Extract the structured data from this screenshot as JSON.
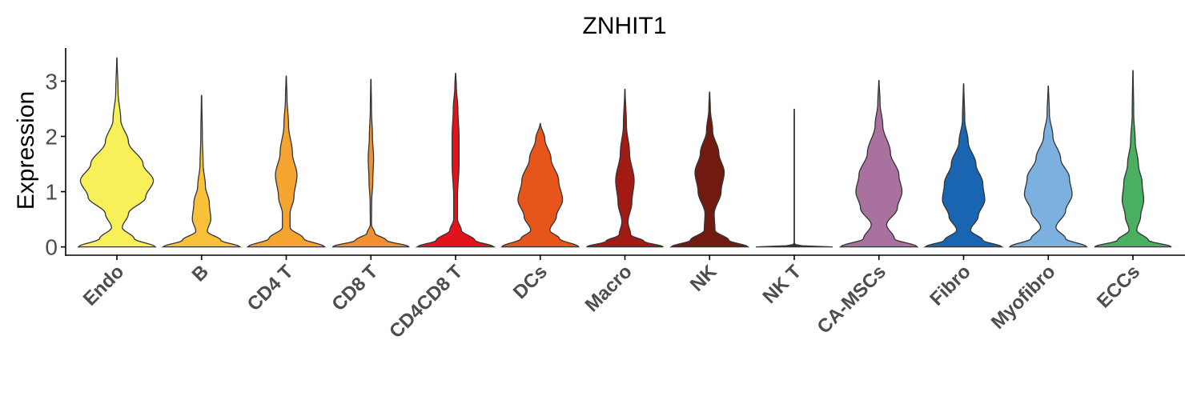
{
  "chart_data": {
    "type": "violin",
    "title": "ZNHIT1",
    "ylabel": "Expression",
    "xlabel": "",
    "ylim": [
      -0.15,
      3.6
    ],
    "yticks": [
      0,
      1,
      2,
      3
    ],
    "categories": [
      "Endo",
      "B",
      "CD4 T",
      "CD8 T",
      "CD4CD8 T",
      "DCs",
      "Macro",
      "NK",
      "NK T",
      "CA-MSCs",
      "Fibro",
      "Myofibro",
      "ECCs"
    ],
    "colors": [
      "#F7F058",
      "#F9C139",
      "#F5A431",
      "#F09030",
      "#E2131A",
      "#E6561B",
      "#A11A14",
      "#701A10",
      "#6B1B12",
      "#A8719E",
      "#1A65B1",
      "#7BB0DF",
      "#4AAF60"
    ],
    "distributions": [
      {
        "max": 3.43,
        "profile": [
          [
            0,
            1.0
          ],
          [
            0.15,
            0.45
          ],
          [
            0.35,
            0.14
          ],
          [
            0.6,
            0.3
          ],
          [
            0.9,
            0.75
          ],
          [
            1.2,
            0.95
          ],
          [
            1.5,
            0.68
          ],
          [
            1.9,
            0.3
          ],
          [
            2.3,
            0.1
          ],
          [
            2.8,
            0.03
          ],
          [
            3.43,
            0.005
          ]
        ]
      },
      {
        "max": 2.75,
        "profile": [
          [
            0,
            1.0
          ],
          [
            0.12,
            0.5
          ],
          [
            0.28,
            0.15
          ],
          [
            0.5,
            0.24
          ],
          [
            0.8,
            0.2
          ],
          [
            1.1,
            0.1
          ],
          [
            1.5,
            0.04
          ],
          [
            2.0,
            0.02
          ],
          [
            2.75,
            0.005
          ]
        ]
      },
      {
        "max": 3.1,
        "profile": [
          [
            0,
            1.0
          ],
          [
            0.15,
            0.45
          ],
          [
            0.35,
            0.1
          ],
          [
            0.6,
            0.1
          ],
          [
            0.9,
            0.2
          ],
          [
            1.3,
            0.28
          ],
          [
            1.7,
            0.16
          ],
          [
            2.2,
            0.06
          ],
          [
            2.7,
            0.02
          ],
          [
            3.1,
            0.005
          ]
        ]
      },
      {
        "max": 3.04,
        "profile": [
          [
            0,
            1.0
          ],
          [
            0.12,
            0.4
          ],
          [
            0.25,
            0.1
          ],
          [
            0.4,
            0.015
          ],
          [
            0.8,
            0.02
          ],
          [
            1.2,
            0.05
          ],
          [
            1.6,
            0.07
          ],
          [
            2.0,
            0.04
          ],
          [
            2.5,
            0.015
          ],
          [
            3.04,
            0.005
          ]
        ]
      },
      {
        "max": 3.15,
        "profile": [
          [
            0,
            1.0
          ],
          [
            0.12,
            0.5
          ],
          [
            0.3,
            0.15
          ],
          [
            0.5,
            0.05
          ],
          [
            0.9,
            0.05
          ],
          [
            1.5,
            0.09
          ],
          [
            2.0,
            0.09
          ],
          [
            2.5,
            0.06
          ],
          [
            2.9,
            0.02
          ],
          [
            3.15,
            0.005
          ]
        ]
      },
      {
        "max": 2.24,
        "profile": [
          [
            0,
            1.0
          ],
          [
            0.15,
            0.5
          ],
          [
            0.3,
            0.25
          ],
          [
            0.55,
            0.42
          ],
          [
            0.85,
            0.58
          ],
          [
            1.2,
            0.48
          ],
          [
            1.6,
            0.28
          ],
          [
            1.95,
            0.12
          ],
          [
            2.24,
            0.005
          ]
        ]
      },
      {
        "max": 2.86,
        "profile": [
          [
            0,
            1.0
          ],
          [
            0.1,
            0.5
          ],
          [
            0.22,
            0.15
          ],
          [
            0.45,
            0.08
          ],
          [
            0.8,
            0.18
          ],
          [
            1.2,
            0.24
          ],
          [
            1.7,
            0.12
          ],
          [
            2.2,
            0.04
          ],
          [
            2.86,
            0.005
          ]
        ]
      },
      {
        "max": 2.81,
        "profile": [
          [
            0,
            1.0
          ],
          [
            0.12,
            0.5
          ],
          [
            0.3,
            0.14
          ],
          [
            0.6,
            0.12
          ],
          [
            1.0,
            0.3
          ],
          [
            1.35,
            0.38
          ],
          [
            1.7,
            0.24
          ],
          [
            2.1,
            0.08
          ],
          [
            2.5,
            0.02
          ],
          [
            2.81,
            0.005
          ]
        ]
      },
      {
        "max": 2.5,
        "profile": [
          [
            0,
            1.0
          ],
          [
            0.02,
            0.2
          ],
          [
            0.05,
            0.005
          ],
          [
            2.5,
            0.005
          ]
        ]
      },
      {
        "max": 3.02,
        "profile": [
          [
            0,
            1.0
          ],
          [
            0.15,
            0.4
          ],
          [
            0.4,
            0.2
          ],
          [
            0.7,
            0.48
          ],
          [
            1.0,
            0.6
          ],
          [
            1.3,
            0.52
          ],
          [
            1.7,
            0.3
          ],
          [
            2.2,
            0.1
          ],
          [
            2.6,
            0.03
          ],
          [
            3.02,
            0.005
          ]
        ]
      },
      {
        "max": 2.96,
        "profile": [
          [
            0,
            1.0
          ],
          [
            0.12,
            0.5
          ],
          [
            0.3,
            0.18
          ],
          [
            0.55,
            0.38
          ],
          [
            0.85,
            0.55
          ],
          [
            1.15,
            0.5
          ],
          [
            1.5,
            0.32
          ],
          [
            1.9,
            0.12
          ],
          [
            2.3,
            0.03
          ],
          [
            2.96,
            0.005
          ]
        ]
      },
      {
        "max": 2.92,
        "profile": [
          [
            0,
            1.0
          ],
          [
            0.15,
            0.45
          ],
          [
            0.35,
            0.2
          ],
          [
            0.65,
            0.45
          ],
          [
            0.95,
            0.62
          ],
          [
            1.25,
            0.55
          ],
          [
            1.6,
            0.32
          ],
          [
            2.0,
            0.12
          ],
          [
            2.4,
            0.03
          ],
          [
            2.92,
            0.005
          ]
        ]
      },
      {
        "max": 3.2,
        "profile": [
          [
            0,
            1.0
          ],
          [
            0.12,
            0.4
          ],
          [
            0.3,
            0.1
          ],
          [
            0.55,
            0.2
          ],
          [
            0.85,
            0.28
          ],
          [
            1.15,
            0.24
          ],
          [
            1.5,
            0.14
          ],
          [
            1.9,
            0.06
          ],
          [
            2.4,
            0.02
          ],
          [
            3.2,
            0.005
          ]
        ]
      }
    ]
  }
}
